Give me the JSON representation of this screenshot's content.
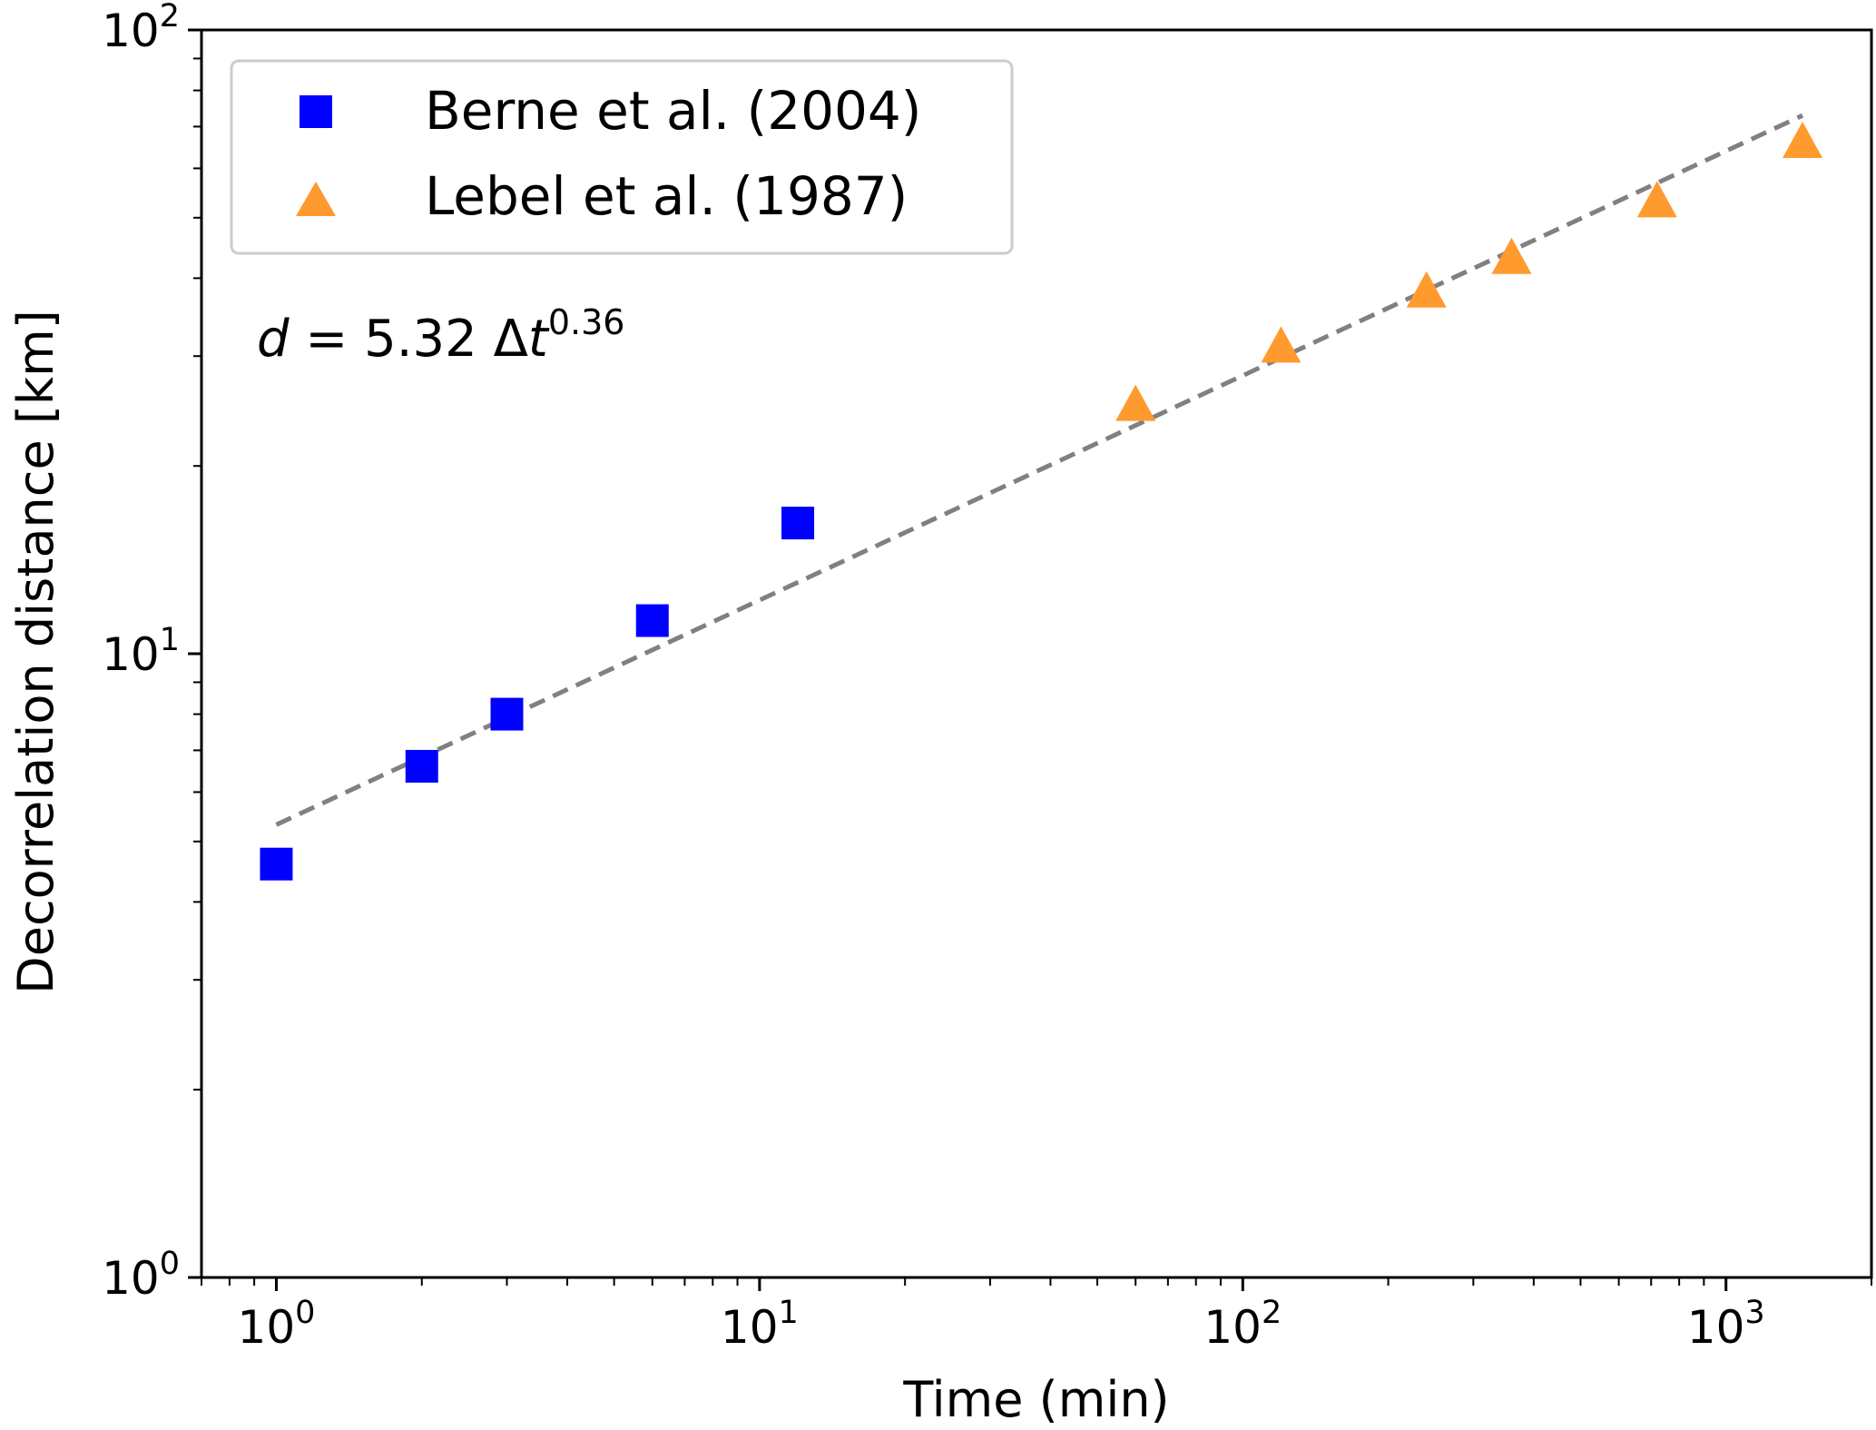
{
  "chart_data": {
    "type": "scatter",
    "xscale": "log",
    "yscale": "log",
    "xlabel": "Time (min)",
    "ylabel": "Decorrelation distance [km]",
    "xlim": [
      0.7,
      2000
    ],
    "ylim": [
      1,
      100
    ],
    "x_ticks": [
      {
        "value": 1,
        "base": "10",
        "exp": "0"
      },
      {
        "value": 10,
        "base": "10",
        "exp": "1"
      },
      {
        "value": 100,
        "base": "10",
        "exp": "2"
      },
      {
        "value": 1000,
        "base": "10",
        "exp": "3"
      }
    ],
    "y_ticks": [
      {
        "value": 1,
        "base": "10",
        "exp": "0"
      },
      {
        "value": 10,
        "base": "10",
        "exp": "1"
      },
      {
        "value": 100,
        "base": "10",
        "exp": "2"
      }
    ],
    "series": [
      {
        "name": "Berne et al. (2004)",
        "marker": "square",
        "color": "#0000ff",
        "points": [
          {
            "x": 1,
            "y": 4.6
          },
          {
            "x": 2,
            "y": 6.6
          },
          {
            "x": 3,
            "y": 8.0
          },
          {
            "x": 6,
            "y": 11.3
          },
          {
            "x": 12,
            "y": 16.2
          }
        ]
      },
      {
        "name": "Lebel et al. (1987)",
        "marker": "triangle",
        "color": "#ff9a2e",
        "points": [
          {
            "x": 60,
            "y": 25
          },
          {
            "x": 120,
            "y": 31
          },
          {
            "x": 240,
            "y": 38
          },
          {
            "x": 360,
            "y": 43
          },
          {
            "x": 720,
            "y": 53
          },
          {
            "x": 1440,
            "y": 66
          }
        ]
      }
    ],
    "fit": {
      "coefficient": 5.32,
      "exponent": 0.36,
      "x_range": [
        1,
        1440
      ],
      "color": "#808080",
      "style": "dashed"
    },
    "annotation": {
      "var": "d",
      "equals": " = 5.32 ",
      "delta": "Δ",
      "tvar": "t",
      "exp": "0.36"
    },
    "legend_position": "top-left",
    "grid": false
  }
}
